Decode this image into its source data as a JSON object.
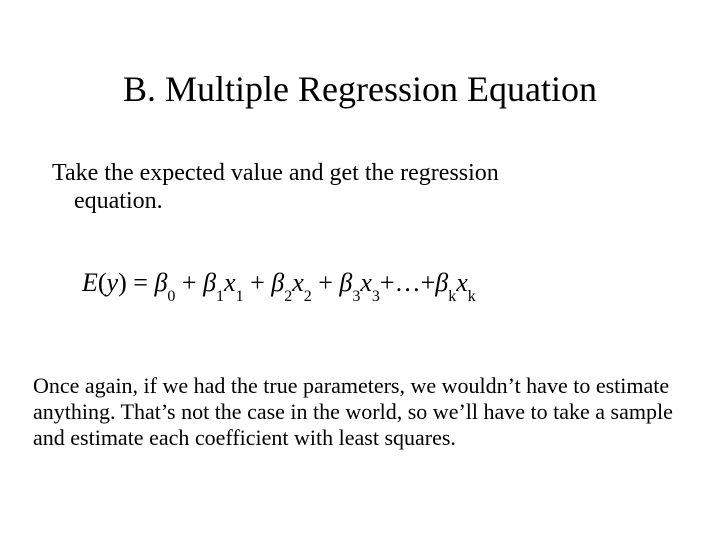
{
  "colors": {
    "background": "#ffffff",
    "text": "#000000"
  },
  "typography": {
    "family": "Times New Roman",
    "title_fontsize": 36,
    "body_fontsize": 24,
    "para2_fontsize": 22,
    "equation_fontsize": 26
  },
  "title": "B.  Multiple Regression Equation",
  "intro": {
    "line1": "Take the expected value and get the regression",
    "line2": "equation."
  },
  "equation": {
    "lhs": "E",
    "lhs_arg": "y",
    "eq": " = ",
    "beta": "β",
    "var": "x",
    "plus": " + ",
    "ellipsis": "+…+",
    "k": "k",
    "terms": [
      {
        "coef_sub": "0",
        "var_sub": null
      },
      {
        "coef_sub": "1",
        "var_sub": "1"
      },
      {
        "coef_sub": "2",
        "var_sub": "2"
      },
      {
        "coef_sub": "3",
        "var_sub": "3"
      }
    ]
  },
  "para2": "Once again, if we had the true parameters, we wouldn’t have to estimate anything.  That’s not the case in the world, so we’ll have to take a sample and estimate each coefficient with least squares."
}
